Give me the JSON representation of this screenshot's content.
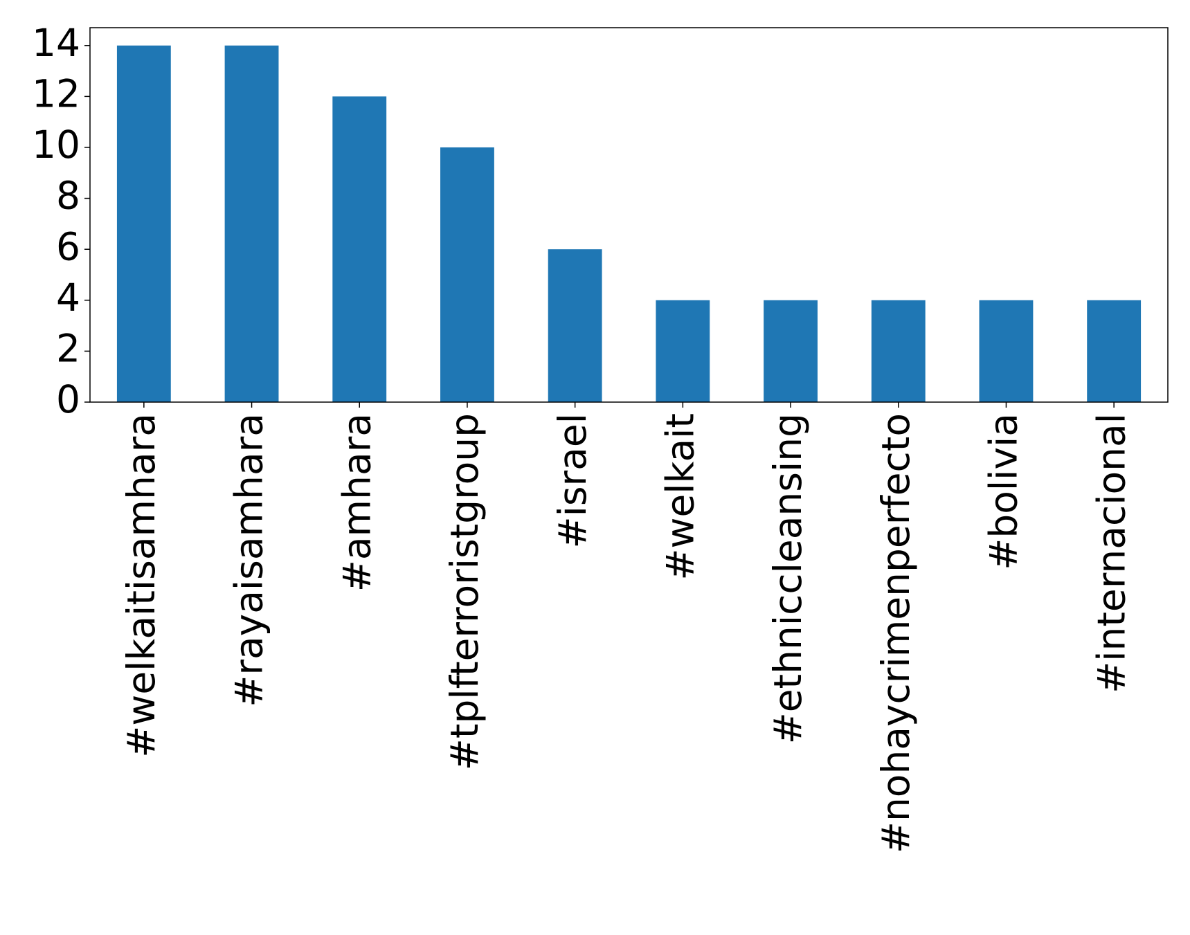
{
  "chart_data": {
    "type": "bar",
    "categories": [
      "#welkaitisamhara",
      "#rayaisamhara",
      "#amhara",
      "#tplfterroristgroup",
      "#israel",
      "#welkait",
      "#ethniccleansing",
      "#nohaycrimenperfecto",
      "#bolivia",
      "#internacional"
    ],
    "values": [
      14,
      14,
      12,
      10,
      6,
      4,
      4,
      4,
      4,
      4
    ],
    "color": "#1f77b4",
    "ylim": [
      0,
      14.7
    ],
    "yticks": [
      0,
      2,
      4,
      6,
      8,
      10,
      12,
      14
    ],
    "grid": false
  }
}
